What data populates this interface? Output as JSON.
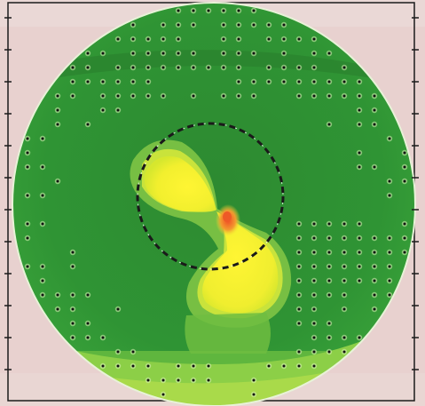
{
  "image": {
    "kind": "corneal-topography-style color map",
    "colors": {
      "background": "#e7cfcc",
      "frame": "#1b1b1b",
      "disc_outer": "#3a9a2c",
      "disc_inner": "#2f8a32",
      "band_light": "#8fd04a",
      "band_mid": "#5ab63c",
      "lobe_halo": "#c7e23a",
      "lobe_core": "#f4f236",
      "hotspot": "#f06a2a",
      "dots": "#111111",
      "dot_halo": "#d9f3b5",
      "dashed_circle": "#1a1a1a"
    },
    "icons": [
      "dot-grid-icon",
      "dashed-circle-icon",
      "bowtie-lobe-icon"
    ]
  }
}
